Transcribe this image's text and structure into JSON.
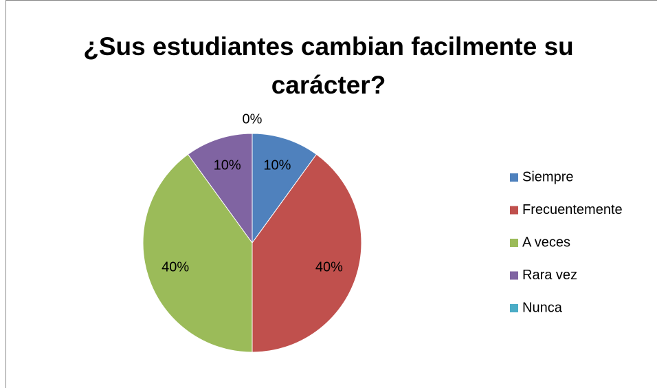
{
  "chart_data": {
    "type": "pie",
    "title": "¿Sus estudiantes cambian facilmente su carácter?",
    "categories": [
      "Siempre",
      "Frecuentemente",
      "A veces",
      "Rara vez",
      "Nunca"
    ],
    "values": [
      10,
      40,
      40,
      10,
      0
    ],
    "value_labels": [
      "10%",
      "40%",
      "40%",
      "10%",
      "0%"
    ],
    "colors": [
      "#4f81bd",
      "#c0504d",
      "#9bbb59",
      "#8064a2",
      "#4bacc6"
    ],
    "legend": "right"
  }
}
